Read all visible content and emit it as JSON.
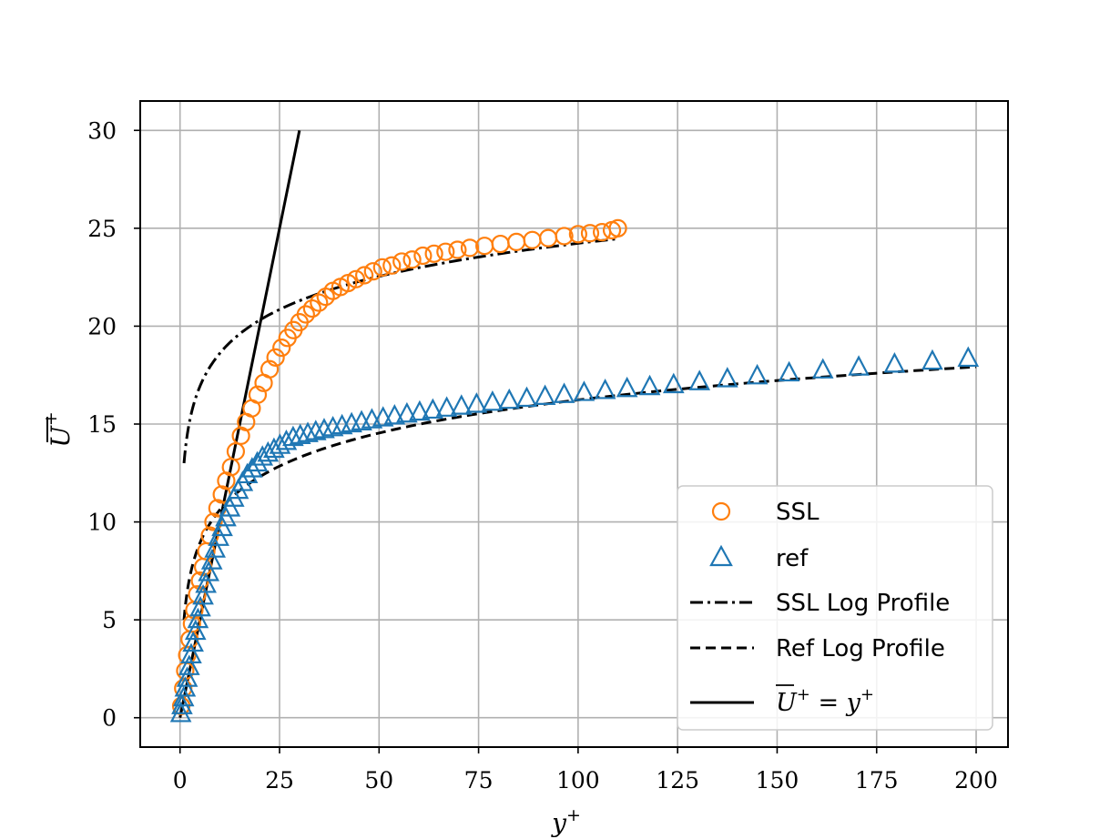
{
  "chart_data": {
    "type": "scatter",
    "xlabel": "y+",
    "ylabel": "U+",
    "xlim": [
      -10,
      208
    ],
    "ylim": [
      -1.5,
      31.5
    ],
    "xticks": [
      0,
      25,
      50,
      75,
      100,
      125,
      150,
      175,
      200
    ],
    "yticks": [
      0,
      5,
      10,
      15,
      20,
      25,
      30
    ],
    "grid": true,
    "legend_placement": "lower-right",
    "colors": {
      "ssl": "#ff7f0e",
      "ref": "#1f77b4",
      "lines": "#000000"
    },
    "series": [
      {
        "name": "SSL",
        "marker": "circle-open",
        "x": [
          0.3,
          0.8,
          1.3,
          1.8,
          2.4,
          3.0,
          3.6,
          4.3,
          5.0,
          5.8,
          6.6,
          7.5,
          8.4,
          9.4,
          10.5,
          11.6,
          12.8,
          14.0,
          15.3,
          16.6,
          18.0,
          19.5,
          21.0,
          22.5,
          24.0,
          25.5,
          27.0,
          28.5,
          30.0,
          31.6,
          33.2,
          34.9,
          36.6,
          38.4,
          40.3,
          42.2,
          44.2,
          46.3,
          48.5,
          50.8,
          53.2,
          55.7,
          58.3,
          61.0,
          63.8,
          66.7,
          69.7,
          72.8,
          76.5,
          80.5,
          84.5,
          88.5,
          92.5,
          96.5,
          100.0,
          103.0,
          106.0,
          108.5,
          110.0
        ],
        "y": [
          0.6,
          1.5,
          2.4,
          3.2,
          4.0,
          4.8,
          5.5,
          6.3,
          7.0,
          7.7,
          8.5,
          9.3,
          10.0,
          10.7,
          11.4,
          12.1,
          12.8,
          13.6,
          14.4,
          15.1,
          15.8,
          16.5,
          17.1,
          17.8,
          18.4,
          18.9,
          19.4,
          19.8,
          20.2,
          20.6,
          20.9,
          21.2,
          21.5,
          21.8,
          22.0,
          22.2,
          22.4,
          22.6,
          22.8,
          23.0,
          23.1,
          23.3,
          23.4,
          23.6,
          23.7,
          23.8,
          23.9,
          24.0,
          24.1,
          24.2,
          24.3,
          24.4,
          24.5,
          24.6,
          24.7,
          24.75,
          24.8,
          24.9,
          25.0
        ]
      },
      {
        "name": "ref",
        "marker": "triangle-open",
        "x": [
          0.2,
          0.5,
          0.9,
          1.3,
          1.8,
          2.3,
          2.8,
          3.3,
          3.9,
          4.5,
          5.1,
          5.8,
          6.5,
          7.2,
          8.0,
          8.8,
          9.7,
          10.6,
          11.5,
          12.5,
          13.5,
          14.6,
          15.7,
          16.9,
          18.1,
          19.4,
          20.7,
          22.1,
          23.6,
          25.1,
          26.7,
          28.4,
          30.2,
          32.1,
          34.1,
          36.2,
          38.4,
          40.7,
          43.1,
          45.6,
          48.2,
          51.0,
          53.9,
          57.0,
          60.2,
          63.5,
          67.0,
          70.7,
          74.5,
          78.5,
          82.7,
          87.1,
          91.7,
          96.5,
          101.5,
          106.8,
          112.3,
          118.0,
          124.0,
          130.5,
          137.5,
          145.0,
          153.0,
          161.5,
          170.5,
          179.5,
          189.0,
          198.0
        ],
        "y": [
          0.2,
          0.6,
          1.0,
          1.5,
          2.0,
          2.6,
          3.2,
          3.8,
          4.4,
          5.0,
          5.6,
          6.2,
          6.8,
          7.4,
          8.0,
          8.6,
          9.2,
          9.7,
          10.2,
          10.7,
          11.2,
          11.6,
          12.0,
          12.4,
          12.7,
          13.0,
          13.3,
          13.5,
          13.7,
          13.9,
          14.1,
          14.3,
          14.4,
          14.5,
          14.6,
          14.7,
          14.8,
          14.9,
          15.0,
          15.1,
          15.2,
          15.3,
          15.4,
          15.5,
          15.6,
          15.7,
          15.8,
          15.9,
          16.0,
          16.1,
          16.2,
          16.3,
          16.4,
          16.5,
          16.6,
          16.7,
          16.8,
          16.9,
          17.0,
          17.15,
          17.3,
          17.45,
          17.6,
          17.75,
          17.9,
          18.05,
          18.2,
          18.35
        ]
      },
      {
        "name": "SSL Log Profile",
        "style": "dashdot",
        "log_law": {
          "kappa": 0.41,
          "B": 13.0
        },
        "x_range": [
          1,
          110
        ]
      },
      {
        "name": "Ref Log Profile",
        "style": "dashed",
        "log_law": {
          "kappa": 0.41,
          "B": 5.0
        },
        "x_range": [
          1,
          200
        ]
      },
      {
        "name": "U+ = y+",
        "style": "solid",
        "x": [
          0,
          30
        ],
        "y": [
          0,
          30
        ]
      }
    ],
    "legend": {
      "items": [
        "SSL",
        "ref",
        "SSL Log Profile",
        "Ref Log Profile",
        "U+ = y+"
      ]
    }
  }
}
